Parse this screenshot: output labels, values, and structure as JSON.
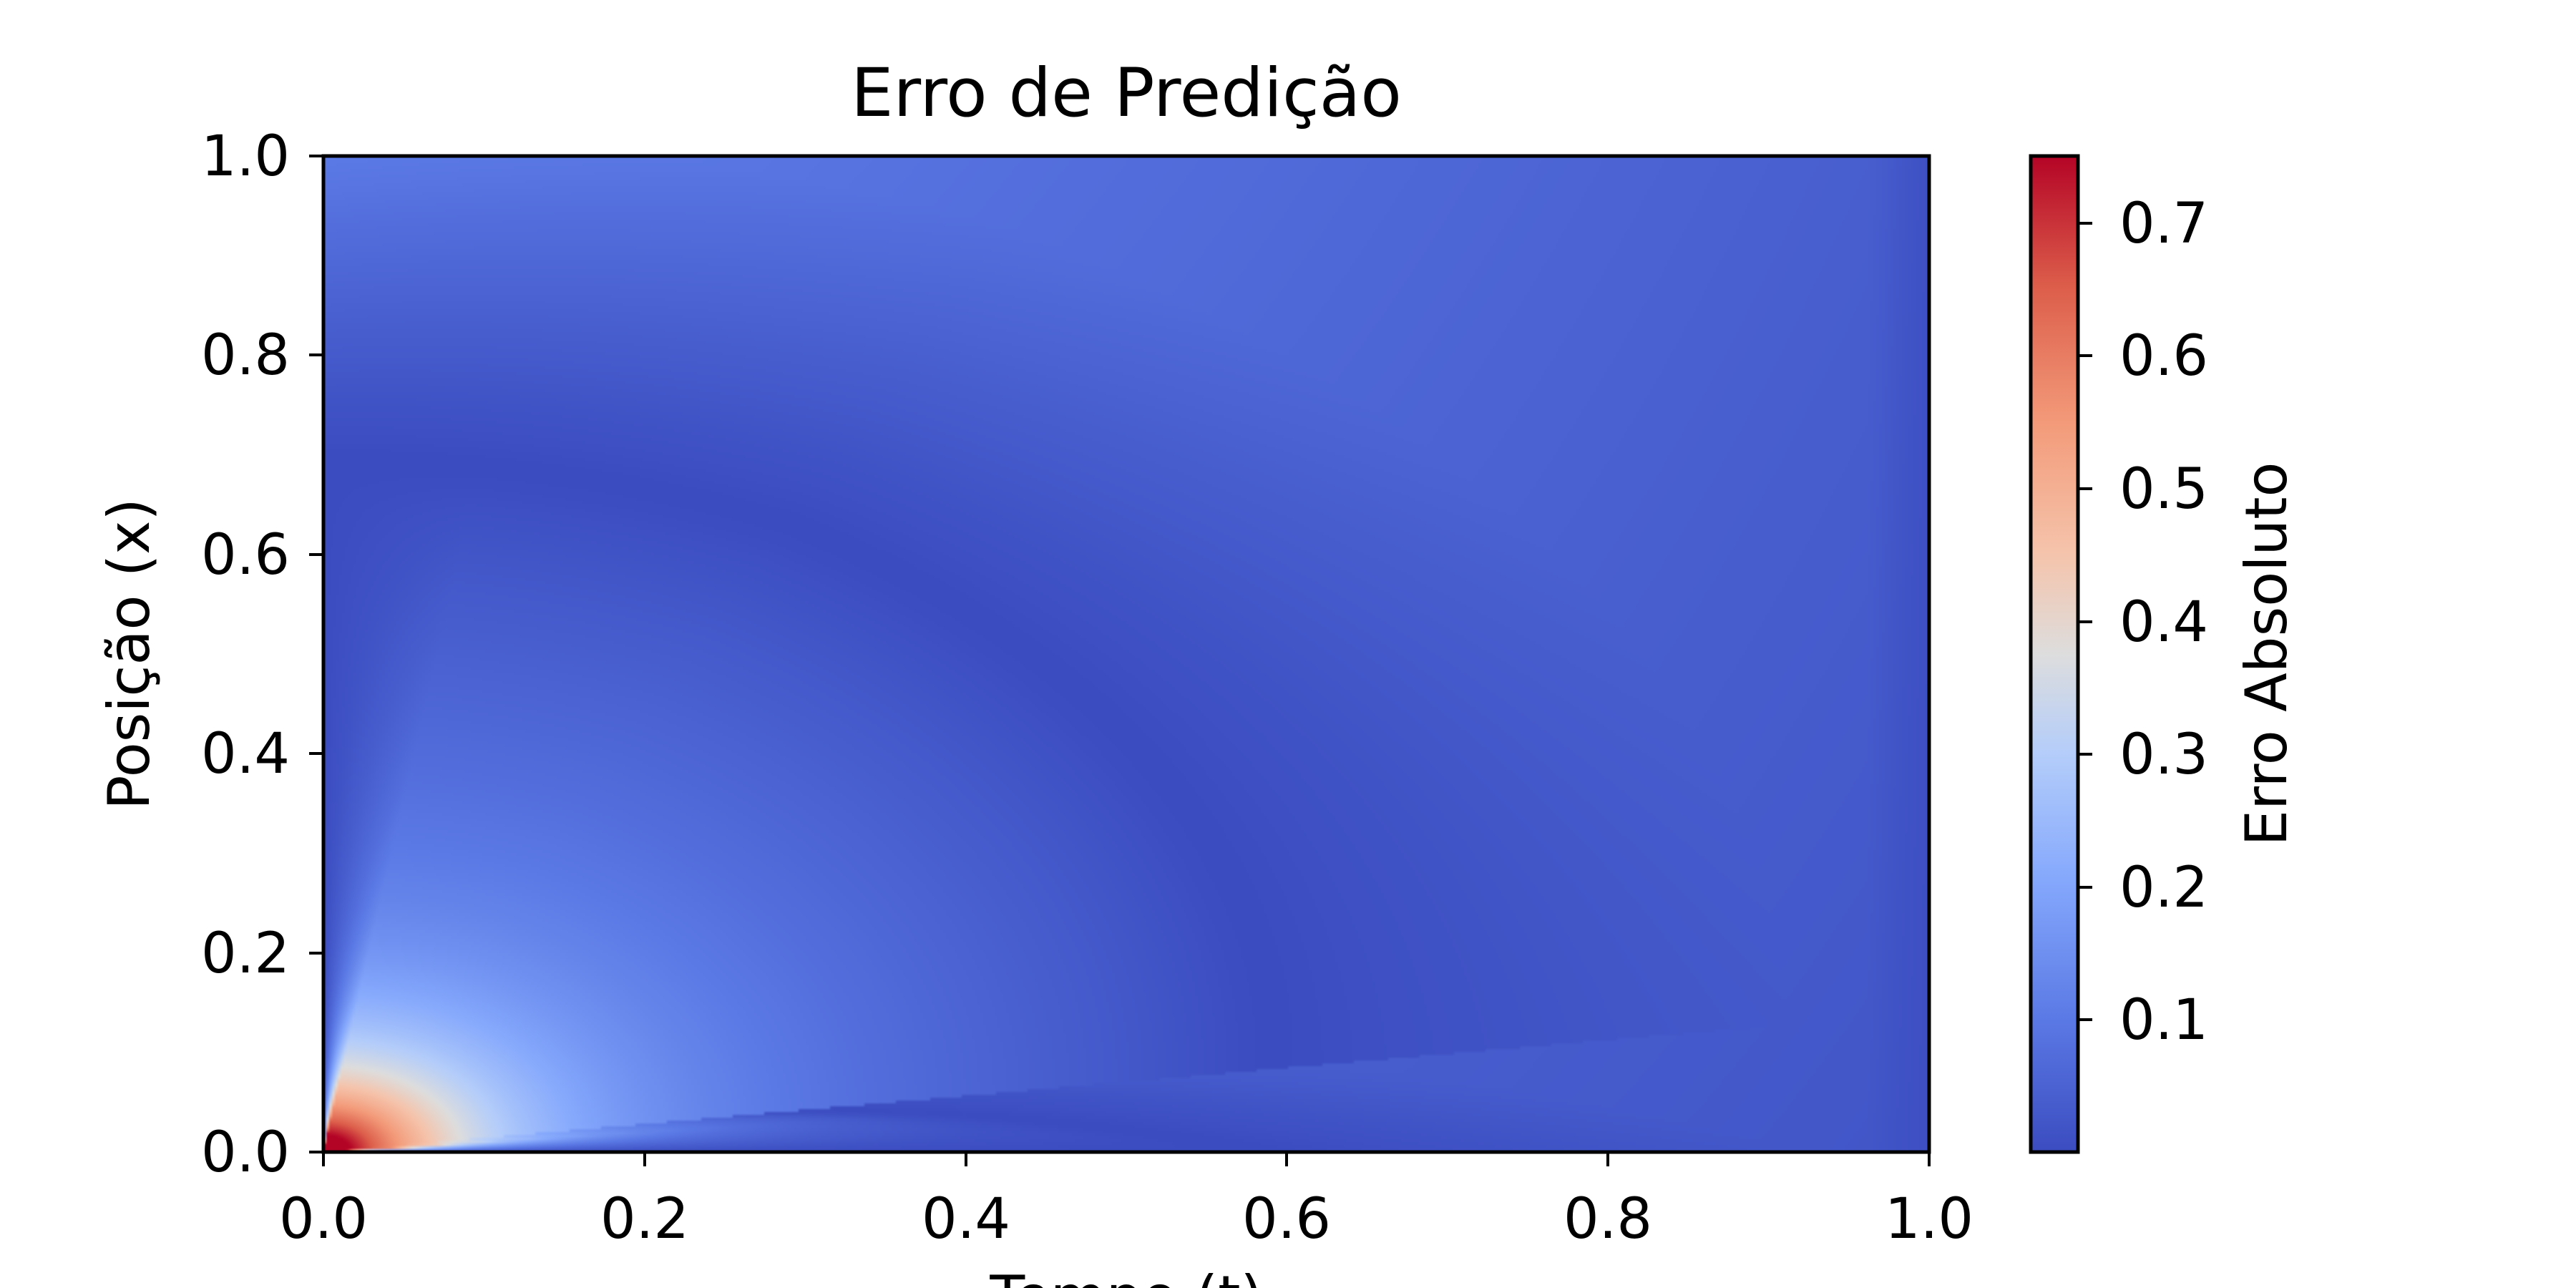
{
  "chart_data": {
    "type": "heatmap",
    "title": "Erro de Predição",
    "xlabel": "Tempo (t)",
    "ylabel": "Posição (x)",
    "xlim": [
      0.0,
      1.0
    ],
    "ylim": [
      0.0,
      1.0
    ],
    "x_ticks": [
      "0.0",
      "0.2",
      "0.4",
      "0.6",
      "0.8",
      "1.0"
    ],
    "y_ticks": [
      "0.0",
      "0.2",
      "0.4",
      "0.6",
      "0.8",
      "1.0"
    ],
    "colormap": "coolwarm",
    "colorbar": {
      "label": "Erro Absoluto",
      "range": [
        0.0,
        0.75
      ],
      "ticks": [
        "0.1",
        "0.2",
        "0.3",
        "0.4",
        "0.5",
        "0.6",
        "0.7"
      ]
    },
    "grid": false,
    "features": [
      {
        "description": "peak",
        "t": 0.01,
        "x": 0.02,
        "value": 0.75
      },
      {
        "description": "warm lobe",
        "t": 0.08,
        "x": 0.08,
        "value": 0.55
      },
      {
        "description": "low-error arc start",
        "t": 0.0,
        "x": 0.0,
        "value": 0.0
      },
      {
        "description": "low-error arc apex",
        "t": 0.3,
        "x": 0.67,
        "value": 0.0
      },
      {
        "description": "low-error arc right",
        "t": 0.67,
        "x": 0.4,
        "value": 0.0
      },
      {
        "description": "low-error arc bottom",
        "t": 0.45,
        "x": 0.08,
        "value": 0.0
      },
      {
        "description": "top band",
        "t": 0.5,
        "x": 1.0,
        "value": 0.13
      },
      {
        "description": "right edge",
        "t": 1.0,
        "x": 0.5,
        "value": 0.03
      }
    ]
  }
}
